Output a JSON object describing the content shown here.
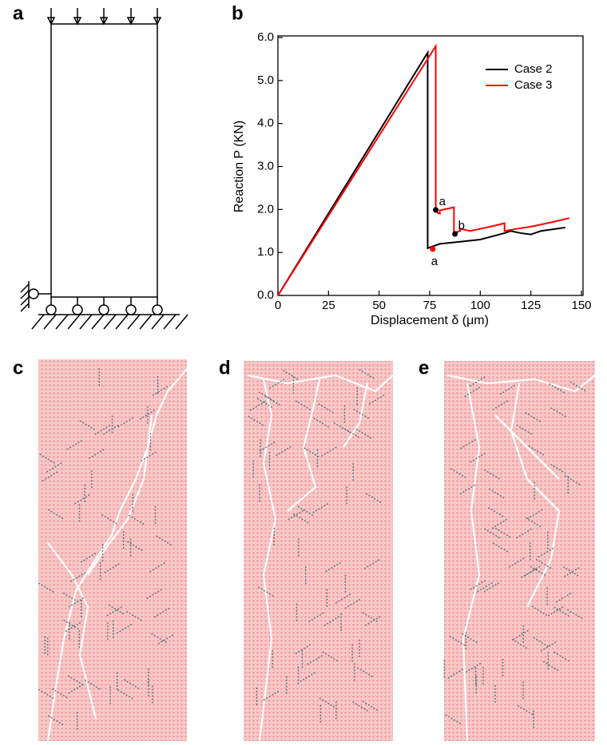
{
  "panel_labels": [
    "a",
    "b",
    "c",
    "d",
    "e"
  ],
  "chart_data": {
    "type": "line",
    "xlabel": "Displacement δ (μm)",
    "ylabel": "Reaction P  (KN)",
    "xlim": [
      0,
      150
    ],
    "ylim": [
      0,
      6
    ],
    "xticks": [
      0,
      25,
      50,
      75,
      100,
      125,
      150
    ],
    "yticks": [
      {
        "value": 0,
        "label": "0.0"
      },
      {
        "value": 1,
        "label": "1.0"
      },
      {
        "value": 2,
        "label": "2.0"
      },
      {
        "value": 3,
        "label": "3.0"
      },
      {
        "value": 4,
        "label": "4.0"
      },
      {
        "value": 5,
        "label": "5.0"
      },
      {
        "value": 6,
        "label": "6.0"
      }
    ],
    "legend": "upper right",
    "series": [
      {
        "name": "Case  2",
        "color": "#000000",
        "x": [
          0,
          74,
          74,
          80,
          90,
          100,
          112,
          115,
          120,
          125,
          130,
          142
        ],
        "values": [
          0,
          5.65,
          1.1,
          1.2,
          1.25,
          1.3,
          1.45,
          1.5,
          1.45,
          1.42,
          1.5,
          1.58
        ]
      },
      {
        "name": "Case  3",
        "color": "#ff0000",
        "x": [
          0,
          78,
          78,
          80,
          80,
          87,
          87,
          90,
          90,
          95,
          100,
          105,
          112,
          112,
          118,
          125,
          135,
          144
        ],
        "values": [
          0,
          5.8,
          1.95,
          1.9,
          1.98,
          2.05,
          1.45,
          1.5,
          1.55,
          1.5,
          1.55,
          1.6,
          1.68,
          1.5,
          1.55,
          1.6,
          1.7,
          1.8
        ]
      }
    ],
    "annotations": [
      {
        "text": "a",
        "x": 78,
        "y": 1.99,
        "color": "#000000"
      },
      {
        "text": "b",
        "x": 87.5,
        "y": 1.43,
        "color": "#000000"
      },
      {
        "text": "a",
        "x": 76.5,
        "y": 1.08,
        "color": "#ff0000"
      }
    ]
  }
}
